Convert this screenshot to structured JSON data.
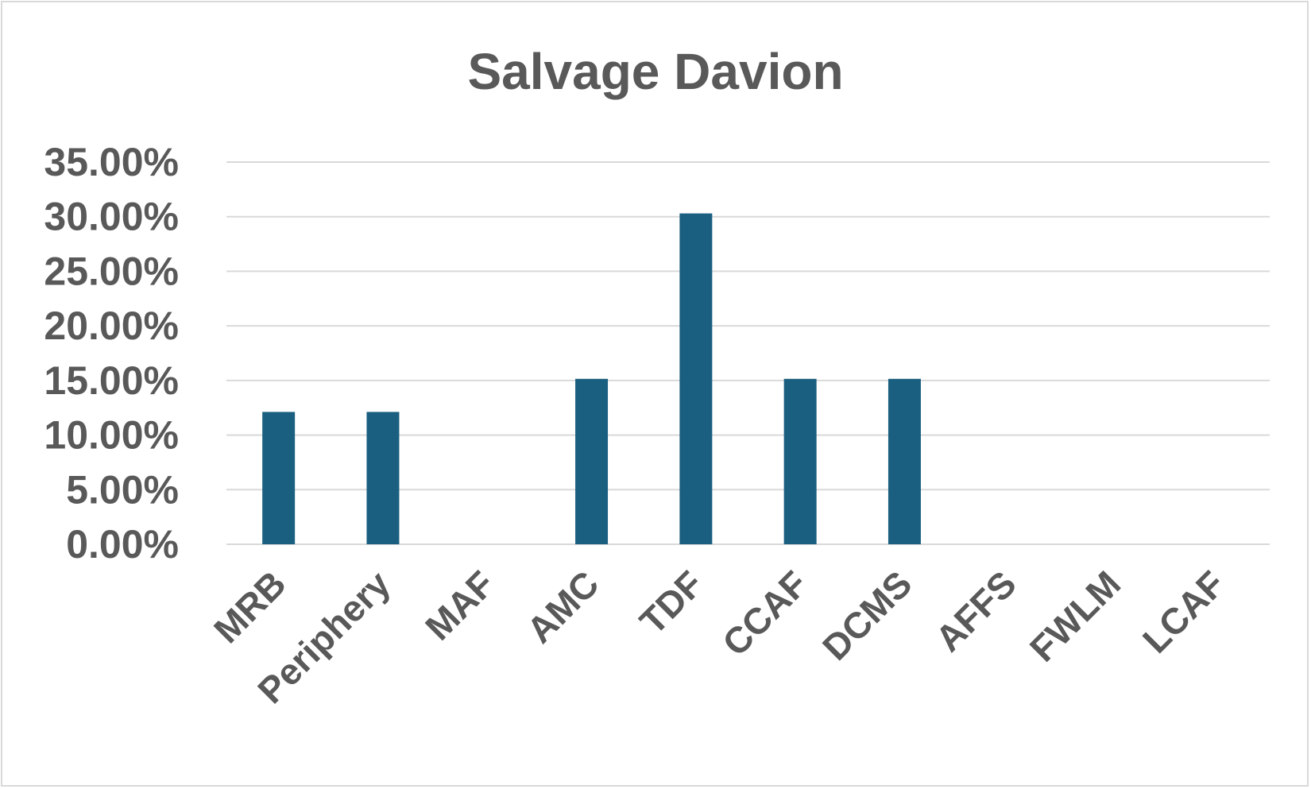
{
  "chart_data": {
    "type": "bar",
    "title": "Salvage Davion",
    "xlabel": "",
    "ylabel": "",
    "categories": [
      "MRB",
      "Periphery",
      "MAF",
      "AMC",
      "TDF",
      "CCAF",
      "DCMS",
      "AFFS",
      "FWLM",
      "LCAF"
    ],
    "values": [
      12.12,
      12.12,
      0,
      15.15,
      30.3,
      15.15,
      15.15,
      0,
      0,
      0
    ],
    "value_unit": "%",
    "ylim": [
      0,
      35
    ],
    "yticks": [
      "0.00%",
      "5.00%",
      "10.00%",
      "15.00%",
      "20.00%",
      "25.00%",
      "30.00%",
      "35.00%"
    ],
    "grid": true,
    "legend": "none",
    "bar_color": "#1a5f80"
  }
}
